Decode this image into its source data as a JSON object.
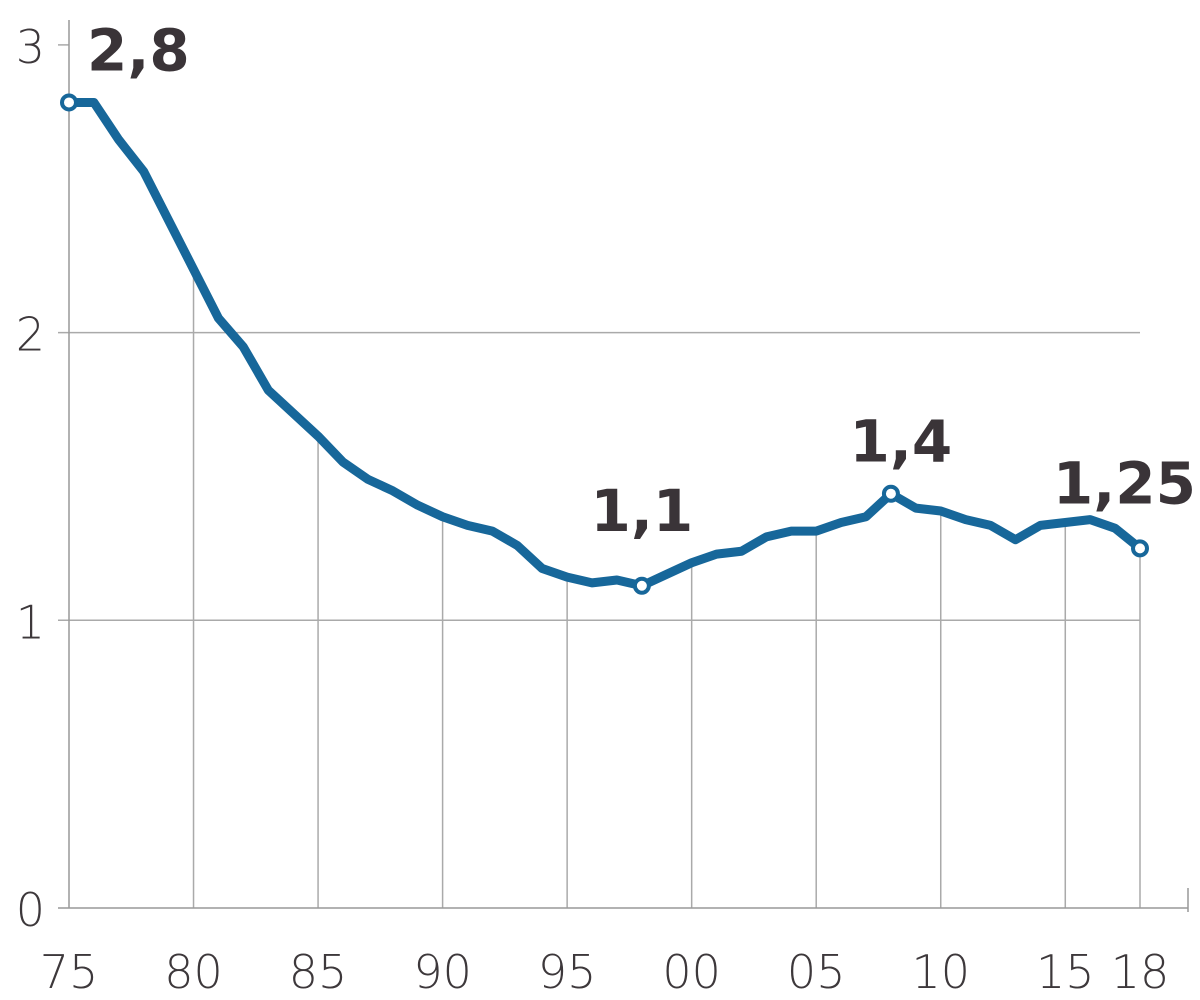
{
  "chart_data": {
    "type": "line",
    "title": "",
    "xlabel": "",
    "ylabel": "",
    "ylim": [
      0,
      3
    ],
    "xlim": [
      1975,
      2018
    ],
    "grid": true,
    "x_ticks": [
      {
        "value": 1975,
        "label": "75"
      },
      {
        "value": 1980,
        "label": "80"
      },
      {
        "value": 1985,
        "label": "85"
      },
      {
        "value": 1990,
        "label": "90"
      },
      {
        "value": 1995,
        "label": "95"
      },
      {
        "value": 2000,
        "label": "00"
      },
      {
        "value": 2005,
        "label": "05"
      },
      {
        "value": 2010,
        "label": "10"
      },
      {
        "value": 2015,
        "label": "15"
      },
      {
        "value": 2018,
        "label": "18"
      }
    ],
    "y_ticks": [
      {
        "value": 0,
        "label": "0"
      },
      {
        "value": 1,
        "label": "1"
      },
      {
        "value": 2,
        "label": "2"
      },
      {
        "value": 3,
        "label": "3"
      }
    ],
    "series": [
      {
        "color": "#17679a",
        "x": [
          1975,
          1976,
          1977,
          1978,
          1979,
          1980,
          1981,
          1982,
          1983,
          1984,
          1985,
          1986,
          1987,
          1988,
          1989,
          1990,
          1991,
          1992,
          1993,
          1994,
          1995,
          1996,
          1997,
          1998,
          1999,
          2000,
          2001,
          2002,
          2003,
          2004,
          2005,
          2006,
          2007,
          2008,
          2009,
          2010,
          2011,
          2012,
          2013,
          2014,
          2015,
          2016,
          2017,
          2018
        ],
        "y": [
          2.8,
          2.8,
          2.67,
          2.56,
          2.39,
          2.22,
          2.05,
          1.95,
          1.8,
          1.72,
          1.64,
          1.55,
          1.49,
          1.45,
          1.4,
          1.36,
          1.33,
          1.31,
          1.26,
          1.18,
          1.15,
          1.13,
          1.14,
          1.12,
          1.16,
          1.2,
          1.23,
          1.24,
          1.29,
          1.31,
          1.31,
          1.34,
          1.36,
          1.44,
          1.39,
          1.38,
          1.35,
          1.33,
          1.28,
          1.33,
          1.34,
          1.35,
          1.32,
          1.25
        ]
      }
    ],
    "annotations": [
      {
        "x": 1975,
        "y": 2.8,
        "label": "2,8"
      },
      {
        "x": 1998,
        "y": 1.12,
        "label": "1,1"
      },
      {
        "x": 2008,
        "y": 1.44,
        "label": "1,4"
      },
      {
        "x": 2018,
        "y": 1.25,
        "label": "1,25"
      }
    ]
  }
}
